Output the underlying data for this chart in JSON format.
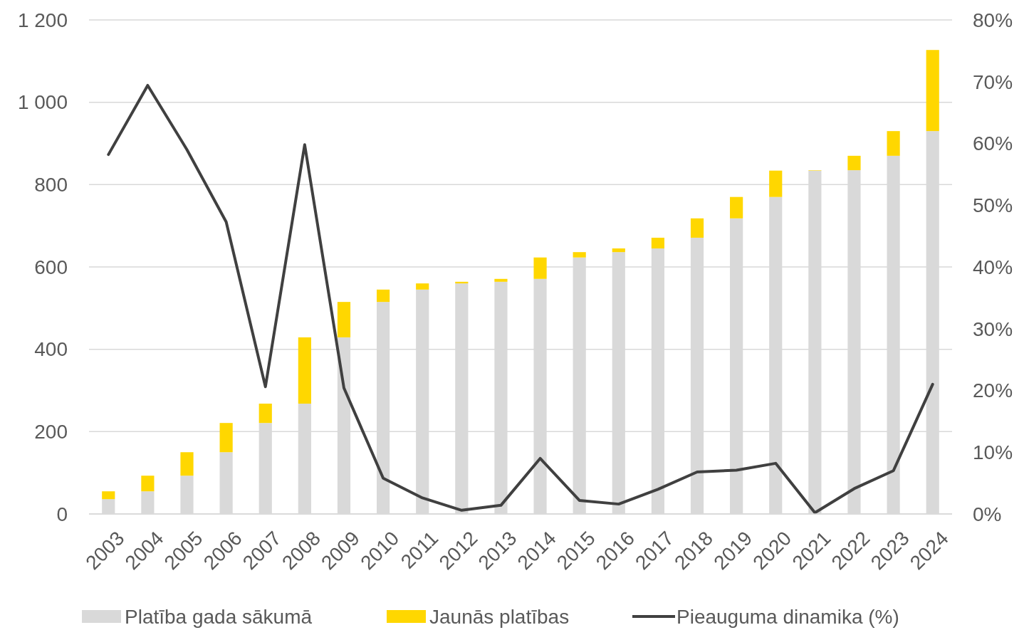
{
  "chart_data": {
    "type": "bar",
    "stacked": true,
    "categories": [
      "2003",
      "2004",
      "2005",
      "2006",
      "2007",
      "2008",
      "2009",
      "2010",
      "2011",
      "2012",
      "2013",
      "2014",
      "2015",
      "2016",
      "2017",
      "2018",
      "2019",
      "2020",
      "2021",
      "2022",
      "2023",
      "2024"
    ],
    "series": [
      {
        "name": "Platība gada sākumā",
        "color": "#d9d9d9",
        "values": [
          36,
          55,
          93,
          150,
          221,
          268,
          429,
          515,
          545,
          560,
          564,
          571,
          623,
          636,
          645,
          671,
          718,
          770,
          834,
          835,
          870,
          930
        ]
      },
      {
        "name": "Jaunās platības",
        "color": "#ffd700",
        "values": [
          19,
          38,
          57,
          71,
          47,
          161,
          86,
          30,
          15,
          4,
          7,
          52,
          13,
          9,
          26,
          47,
          52,
          64,
          1,
          35,
          60,
          197
        ]
      },
      {
        "name": "Pieauguma dinamika (%)",
        "type": "line",
        "axis": "y2",
        "color": "#404040",
        "values": [
          58.2,
          69.4,
          59.0,
          47.3,
          20.6,
          59.8,
          20.4,
          5.8,
          2.6,
          0.6,
          1.4,
          9.0,
          2.2,
          1.6,
          4.0,
          6.8,
          7.1,
          8.2,
          0.2,
          4.1,
          7.0,
          21.0
        ]
      }
    ],
    "ylim": [
      0,
      1200
    ],
    "yticks": [
      0,
      200,
      400,
      600,
      800,
      {
        "value": 1000,
        "label": "1 000"
      },
      {
        "value": 1200,
        "label": "1 200"
      }
    ],
    "y2lim": [
      0,
      80
    ],
    "y2ticks": [
      {
        "value": 0,
        "label": "0%"
      },
      {
        "value": 10,
        "label": "10%"
      },
      {
        "value": 20,
        "label": "20%"
      },
      {
        "value": 30,
        "label": "30%"
      },
      {
        "value": 40,
        "label": "40%"
      },
      {
        "value": 50,
        "label": "50%"
      },
      {
        "value": 60,
        "label": "60%"
      },
      {
        "value": 70,
        "label": "70%"
      },
      {
        "value": 80,
        "label": "80%"
      }
    ],
    "grid": "y",
    "legend": "bottom",
    "marker": "none",
    "line_style": "solid"
  }
}
